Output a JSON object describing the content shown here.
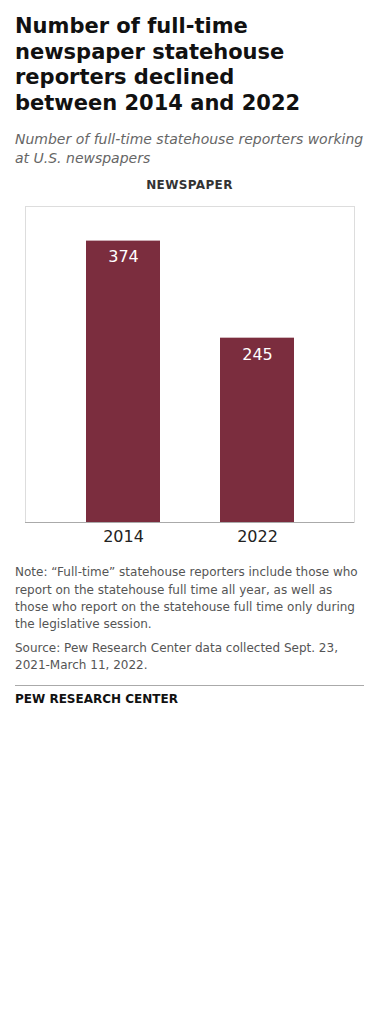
{
  "chart_data": {
    "type": "bar",
    "title": "Number of full-time\nnewspaper statehouse\nreporters declined\nbetween 2014 and 2022",
    "subtitle": "Number of full-time statehouse reporters working at U.S. newspapers",
    "categories": [
      "2014",
      "2022"
    ],
    "values": [
      374,
      245
    ],
    "color": "#7B2D3E",
    "ylim": [
      0,
      420
    ],
    "data_labels": true,
    "tick_labels": "x",
    "grid": false,
    "annotations": [
      "NEWSPAPER",
      "Note: “Full-time” statehouse reporters include those who report on the statehouse full time all year, as well as those who report on the statehouse full time only during the legislative session.",
      "Source: Pew Research Center data collected Sept. 23, 2021-March 11, 2022.",
      "PEW RESEARCH CENTER"
    ]
  }
}
